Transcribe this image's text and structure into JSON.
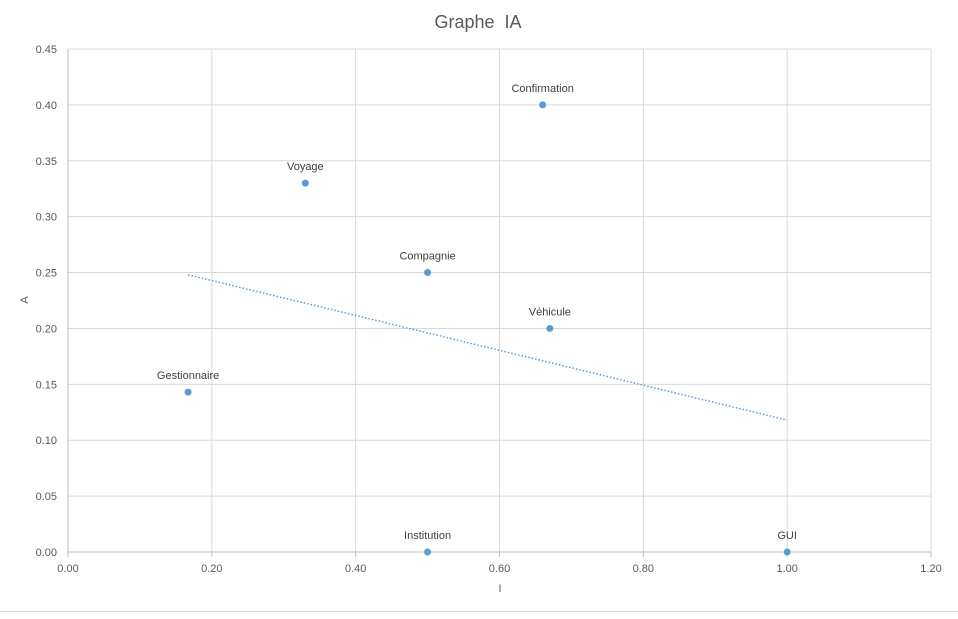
{
  "chart_data": {
    "type": "scatter",
    "title": "Graphe  IA",
    "xlabel": "I",
    "ylabel": "A",
    "xlim": [
      0,
      1.2
    ],
    "ylim": [
      0,
      0.45
    ],
    "x_ticks": [
      "0.00",
      "0.20",
      "0.40",
      "0.60",
      "0.80",
      "1.00",
      "1.20"
    ],
    "y_ticks": [
      "0.00",
      "0.05",
      "0.10",
      "0.15",
      "0.20",
      "0.25",
      "0.30",
      "0.35",
      "0.40",
      "0.45"
    ],
    "grid": true,
    "points": [
      {
        "label": "Confirmation",
        "x": 0.66,
        "y": 0.4
      },
      {
        "label": "Voyage",
        "x": 0.33,
        "y": 0.33
      },
      {
        "label": "Compagnie",
        "x": 0.5,
        "y": 0.25
      },
      {
        "label": "Véhicule",
        "x": 0.67,
        "y": 0.2
      },
      {
        "label": "Gestionnaire",
        "x": 0.167,
        "y": 0.143
      },
      {
        "label": "Institution",
        "x": 0.5,
        "y": 0.0
      },
      {
        "label": "GUI",
        "x": 1.0,
        "y": 0.0
      }
    ],
    "trendline": {
      "type": "linear",
      "style": "dotted",
      "x_start": 0.167,
      "y_start": 0.248,
      "x_end": 1.0,
      "y_end": 0.118
    },
    "colors": {
      "point": "#5b9bd5",
      "trendline": "#5b9bd5",
      "grid": "#d9d9d9",
      "text": "#595959",
      "title": "#595959"
    }
  }
}
